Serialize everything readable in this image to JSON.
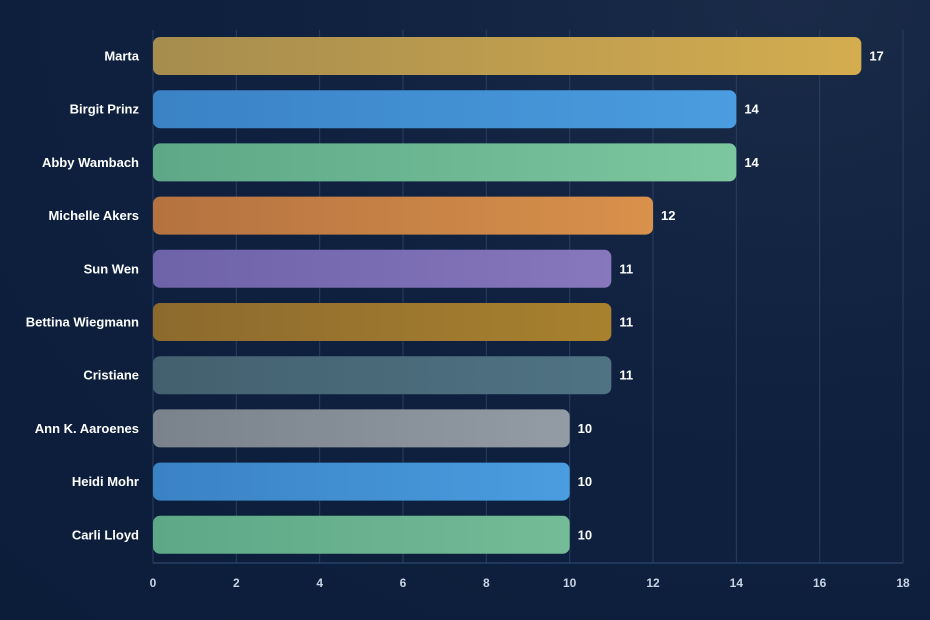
{
  "chart_data": {
    "type": "bar",
    "orientation": "horizontal",
    "categories": [
      "Marta",
      "Birgit Prinz",
      "Abby Wambach",
      "Michelle Akers",
      "Sun Wen",
      "Bettina Wiegmann",
      "Cristiane",
      "Ann K. Aaroenes",
      "Heidi Mohr",
      "Carli Lloyd"
    ],
    "values": [
      17,
      14,
      14,
      12,
      11,
      11,
      11,
      10,
      10,
      10
    ],
    "value_labels": [
      "17",
      "14",
      "14",
      "12",
      "11",
      "11",
      "11",
      "10",
      "10",
      "10"
    ],
    "colors": [
      [
        "#a68c4e",
        "#d4ad4f"
      ],
      [
        "#3a82c4",
        "#4a9de0"
      ],
      [
        "#5ea887",
        "#7cc79f"
      ],
      [
        "#b47240",
        "#d9914b"
      ],
      [
        "#6e62a8",
        "#8777bd"
      ],
      [
        "#8c6a2e",
        "#a8812e"
      ],
      [
        "#44606f",
        "#4f7383"
      ],
      [
        "#7a828c",
        "#939ba4"
      ],
      [
        "#3a82c4",
        "#4a9de0"
      ],
      [
        "#5ea887",
        "#74bb97"
      ]
    ],
    "xticks": [
      0,
      2,
      4,
      6,
      8,
      10,
      12,
      14,
      16,
      18
    ],
    "xlim": [
      0,
      18
    ],
    "title": "",
    "xlabel": "",
    "ylabel": "",
    "grid": true,
    "legend": "none"
  }
}
